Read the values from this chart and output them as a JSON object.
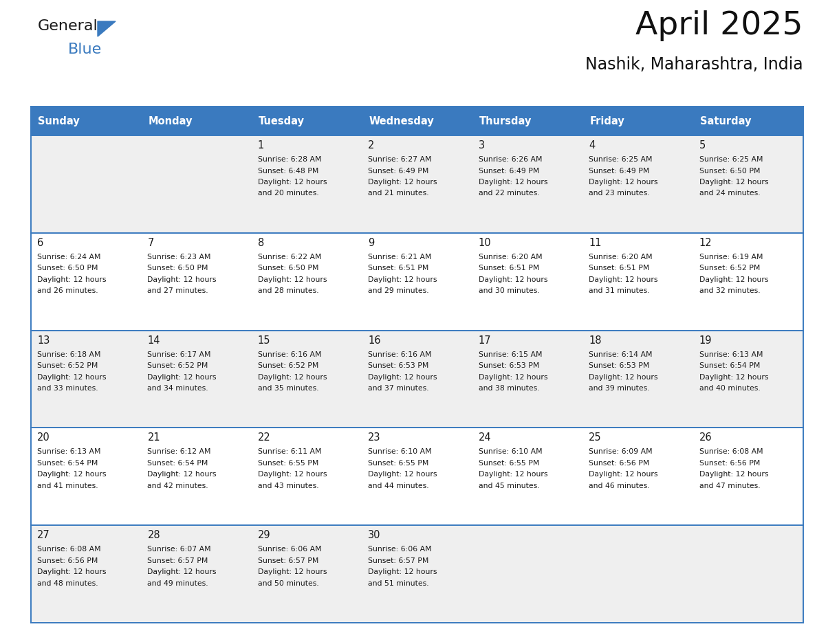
{
  "title": "April 2025",
  "subtitle": "Nashik, Maharashtra, India",
  "header_color": "#3a7abf",
  "header_text_color": "#ffffff",
  "cell_bg_odd": "#efefef",
  "cell_bg_even": "#ffffff",
  "border_color": "#3a7abf",
  "text_color": "#1a1a1a",
  "days_of_week": [
    "Sunday",
    "Monday",
    "Tuesday",
    "Wednesday",
    "Thursday",
    "Friday",
    "Saturday"
  ],
  "calendar": [
    [
      {
        "day": "",
        "sunrise": "",
        "sunset": "",
        "daylight": ""
      },
      {
        "day": "",
        "sunrise": "",
        "sunset": "",
        "daylight": ""
      },
      {
        "day": "1",
        "sunrise": "Sunrise: 6:28 AM",
        "sunset": "Sunset: 6:48 PM",
        "daylight": "Daylight: 12 hours\nand 20 minutes."
      },
      {
        "day": "2",
        "sunrise": "Sunrise: 6:27 AM",
        "sunset": "Sunset: 6:49 PM",
        "daylight": "Daylight: 12 hours\nand 21 minutes."
      },
      {
        "day": "3",
        "sunrise": "Sunrise: 6:26 AM",
        "sunset": "Sunset: 6:49 PM",
        "daylight": "Daylight: 12 hours\nand 22 minutes."
      },
      {
        "day": "4",
        "sunrise": "Sunrise: 6:25 AM",
        "sunset": "Sunset: 6:49 PM",
        "daylight": "Daylight: 12 hours\nand 23 minutes."
      },
      {
        "day": "5",
        "sunrise": "Sunrise: 6:25 AM",
        "sunset": "Sunset: 6:50 PM",
        "daylight": "Daylight: 12 hours\nand 24 minutes."
      }
    ],
    [
      {
        "day": "6",
        "sunrise": "Sunrise: 6:24 AM",
        "sunset": "Sunset: 6:50 PM",
        "daylight": "Daylight: 12 hours\nand 26 minutes."
      },
      {
        "day": "7",
        "sunrise": "Sunrise: 6:23 AM",
        "sunset": "Sunset: 6:50 PM",
        "daylight": "Daylight: 12 hours\nand 27 minutes."
      },
      {
        "day": "8",
        "sunrise": "Sunrise: 6:22 AM",
        "sunset": "Sunset: 6:50 PM",
        "daylight": "Daylight: 12 hours\nand 28 minutes."
      },
      {
        "day": "9",
        "sunrise": "Sunrise: 6:21 AM",
        "sunset": "Sunset: 6:51 PM",
        "daylight": "Daylight: 12 hours\nand 29 minutes."
      },
      {
        "day": "10",
        "sunrise": "Sunrise: 6:20 AM",
        "sunset": "Sunset: 6:51 PM",
        "daylight": "Daylight: 12 hours\nand 30 minutes."
      },
      {
        "day": "11",
        "sunrise": "Sunrise: 6:20 AM",
        "sunset": "Sunset: 6:51 PM",
        "daylight": "Daylight: 12 hours\nand 31 minutes."
      },
      {
        "day": "12",
        "sunrise": "Sunrise: 6:19 AM",
        "sunset": "Sunset: 6:52 PM",
        "daylight": "Daylight: 12 hours\nand 32 minutes."
      }
    ],
    [
      {
        "day": "13",
        "sunrise": "Sunrise: 6:18 AM",
        "sunset": "Sunset: 6:52 PM",
        "daylight": "Daylight: 12 hours\nand 33 minutes."
      },
      {
        "day": "14",
        "sunrise": "Sunrise: 6:17 AM",
        "sunset": "Sunset: 6:52 PM",
        "daylight": "Daylight: 12 hours\nand 34 minutes."
      },
      {
        "day": "15",
        "sunrise": "Sunrise: 6:16 AM",
        "sunset": "Sunset: 6:52 PM",
        "daylight": "Daylight: 12 hours\nand 35 minutes."
      },
      {
        "day": "16",
        "sunrise": "Sunrise: 6:16 AM",
        "sunset": "Sunset: 6:53 PM",
        "daylight": "Daylight: 12 hours\nand 37 minutes."
      },
      {
        "day": "17",
        "sunrise": "Sunrise: 6:15 AM",
        "sunset": "Sunset: 6:53 PM",
        "daylight": "Daylight: 12 hours\nand 38 minutes."
      },
      {
        "day": "18",
        "sunrise": "Sunrise: 6:14 AM",
        "sunset": "Sunset: 6:53 PM",
        "daylight": "Daylight: 12 hours\nand 39 minutes."
      },
      {
        "day": "19",
        "sunrise": "Sunrise: 6:13 AM",
        "sunset": "Sunset: 6:54 PM",
        "daylight": "Daylight: 12 hours\nand 40 minutes."
      }
    ],
    [
      {
        "day": "20",
        "sunrise": "Sunrise: 6:13 AM",
        "sunset": "Sunset: 6:54 PM",
        "daylight": "Daylight: 12 hours\nand 41 minutes."
      },
      {
        "day": "21",
        "sunrise": "Sunrise: 6:12 AM",
        "sunset": "Sunset: 6:54 PM",
        "daylight": "Daylight: 12 hours\nand 42 minutes."
      },
      {
        "day": "22",
        "sunrise": "Sunrise: 6:11 AM",
        "sunset": "Sunset: 6:55 PM",
        "daylight": "Daylight: 12 hours\nand 43 minutes."
      },
      {
        "day": "23",
        "sunrise": "Sunrise: 6:10 AM",
        "sunset": "Sunset: 6:55 PM",
        "daylight": "Daylight: 12 hours\nand 44 minutes."
      },
      {
        "day": "24",
        "sunrise": "Sunrise: 6:10 AM",
        "sunset": "Sunset: 6:55 PM",
        "daylight": "Daylight: 12 hours\nand 45 minutes."
      },
      {
        "day": "25",
        "sunrise": "Sunrise: 6:09 AM",
        "sunset": "Sunset: 6:56 PM",
        "daylight": "Daylight: 12 hours\nand 46 minutes."
      },
      {
        "day": "26",
        "sunrise": "Sunrise: 6:08 AM",
        "sunset": "Sunset: 6:56 PM",
        "daylight": "Daylight: 12 hours\nand 47 minutes."
      }
    ],
    [
      {
        "day": "27",
        "sunrise": "Sunrise: 6:08 AM",
        "sunset": "Sunset: 6:56 PM",
        "daylight": "Daylight: 12 hours\nand 48 minutes."
      },
      {
        "day": "28",
        "sunrise": "Sunrise: 6:07 AM",
        "sunset": "Sunset: 6:57 PM",
        "daylight": "Daylight: 12 hours\nand 49 minutes."
      },
      {
        "day": "29",
        "sunrise": "Sunrise: 6:06 AM",
        "sunset": "Sunset: 6:57 PM",
        "daylight": "Daylight: 12 hours\nand 50 minutes."
      },
      {
        "day": "30",
        "sunrise": "Sunrise: 6:06 AM",
        "sunset": "Sunset: 6:57 PM",
        "daylight": "Daylight: 12 hours\nand 51 minutes."
      },
      {
        "day": "",
        "sunrise": "",
        "sunset": "",
        "daylight": ""
      },
      {
        "day": "",
        "sunrise": "",
        "sunset": "",
        "daylight": ""
      },
      {
        "day": "",
        "sunrise": "",
        "sunset": "",
        "daylight": ""
      }
    ]
  ],
  "logo_general_color": "#1a1a1a",
  "logo_blue_color": "#3a7abf",
  "logo_triangle_color": "#3a7abf"
}
